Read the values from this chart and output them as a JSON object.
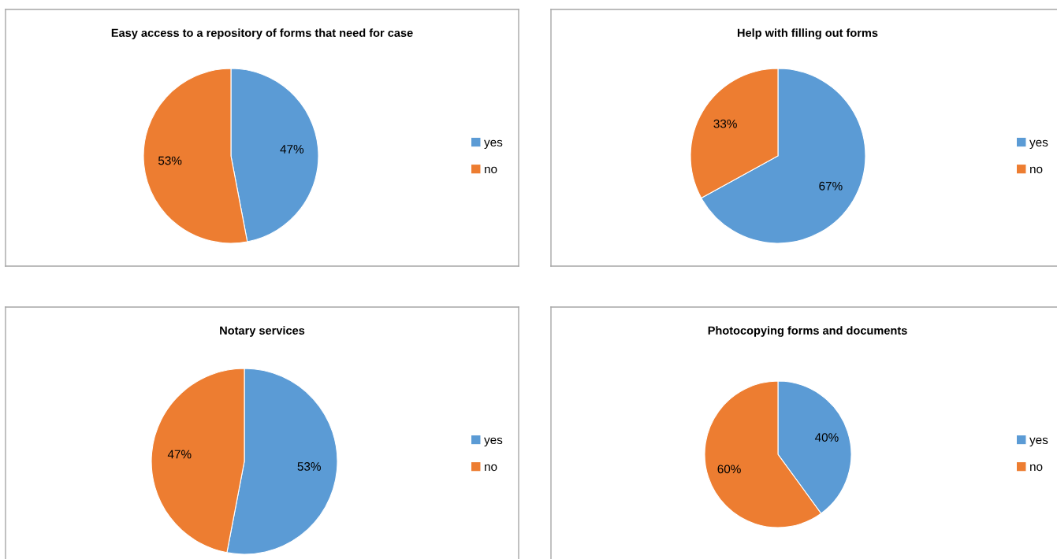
{
  "chart_data": [
    {
      "type": "pie",
      "title": "Easy access to a repository of forms that need for case",
      "categories": [
        "yes",
        "no"
      ],
      "values": [
        47,
        53
      ],
      "colors": [
        "#5b9bd5",
        "#ed7d31"
      ],
      "value_labels": [
        "47%",
        "53%"
      ],
      "legend": "right"
    },
    {
      "type": "pie",
      "title": "Help with filling out forms",
      "categories": [
        "yes",
        "no"
      ],
      "values": [
        67,
        33
      ],
      "colors": [
        "#5b9bd5",
        "#ed7d31"
      ],
      "value_labels": [
        "67%",
        "33%"
      ],
      "legend": "right"
    },
    {
      "type": "pie",
      "title": "Notary services",
      "categories": [
        "yes",
        "no"
      ],
      "values": [
        53,
        47
      ],
      "colors": [
        "#5b9bd5",
        "#ed7d31"
      ],
      "value_labels": [
        "53%",
        "47%"
      ],
      "legend": "right"
    },
    {
      "type": "pie",
      "title": "Photocopying forms and documents",
      "categories": [
        "yes",
        "no"
      ],
      "values": [
        40,
        60
      ],
      "colors": [
        "#5b9bd5",
        "#ed7d31"
      ],
      "value_labels": [
        "40%",
        "60%"
      ],
      "legend": "right"
    }
  ]
}
